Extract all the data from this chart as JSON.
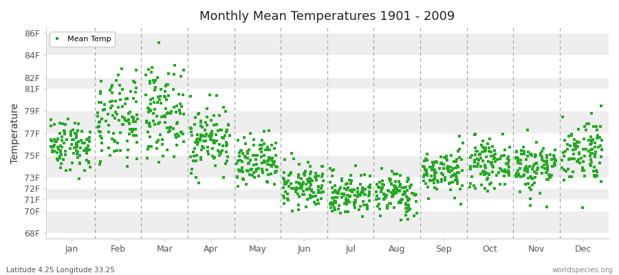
{
  "title": "Monthly Mean Temperatures 1901 - 2009",
  "ylabel": "Temperature",
  "xlabel_months": [
    "Jan",
    "Feb",
    "Mar",
    "Apr",
    "May",
    "Jun",
    "Jul",
    "Aug",
    "Sep",
    "Oct",
    "Nov",
    "Dec"
  ],
  "subtitle_left": "Latitude 4.25 Longitude 33.25",
  "subtitle_right": "worldspecies.org",
  "legend_label": "Mean Temp",
  "ytick_labels": [
    "68F",
    "70F",
    "71F",
    "72F",
    "73F",
    "75F",
    "77F",
    "79F",
    "81F",
    "82F",
    "84F",
    "86F"
  ],
  "ytick_values": [
    68,
    70,
    71,
    72,
    73,
    75,
    77,
    79,
    81,
    82,
    84,
    86
  ],
  "ylim": [
    67.5,
    86.5
  ],
  "fig_bg_color": "#ffffff",
  "plot_bg_color": "#ffffff",
  "band_color_light": "#ffffff",
  "band_color_dark": "#eeeeee",
  "marker_color": "#22aa22",
  "years": 109,
  "monthly_means": [
    76.0,
    78.0,
    79.0,
    76.5,
    74.2,
    72.2,
    71.5,
    71.5,
    73.5,
    74.2,
    74.0,
    75.5
  ],
  "monthly_stds": [
    1.2,
    2.0,
    2.0,
    1.5,
    1.2,
    1.0,
    1.0,
    1.0,
    1.0,
    1.0,
    1.2,
    1.5
  ],
  "dashed_line_color": "#999999",
  "spine_color": "#cccccc",
  "tick_label_color": "#555555"
}
